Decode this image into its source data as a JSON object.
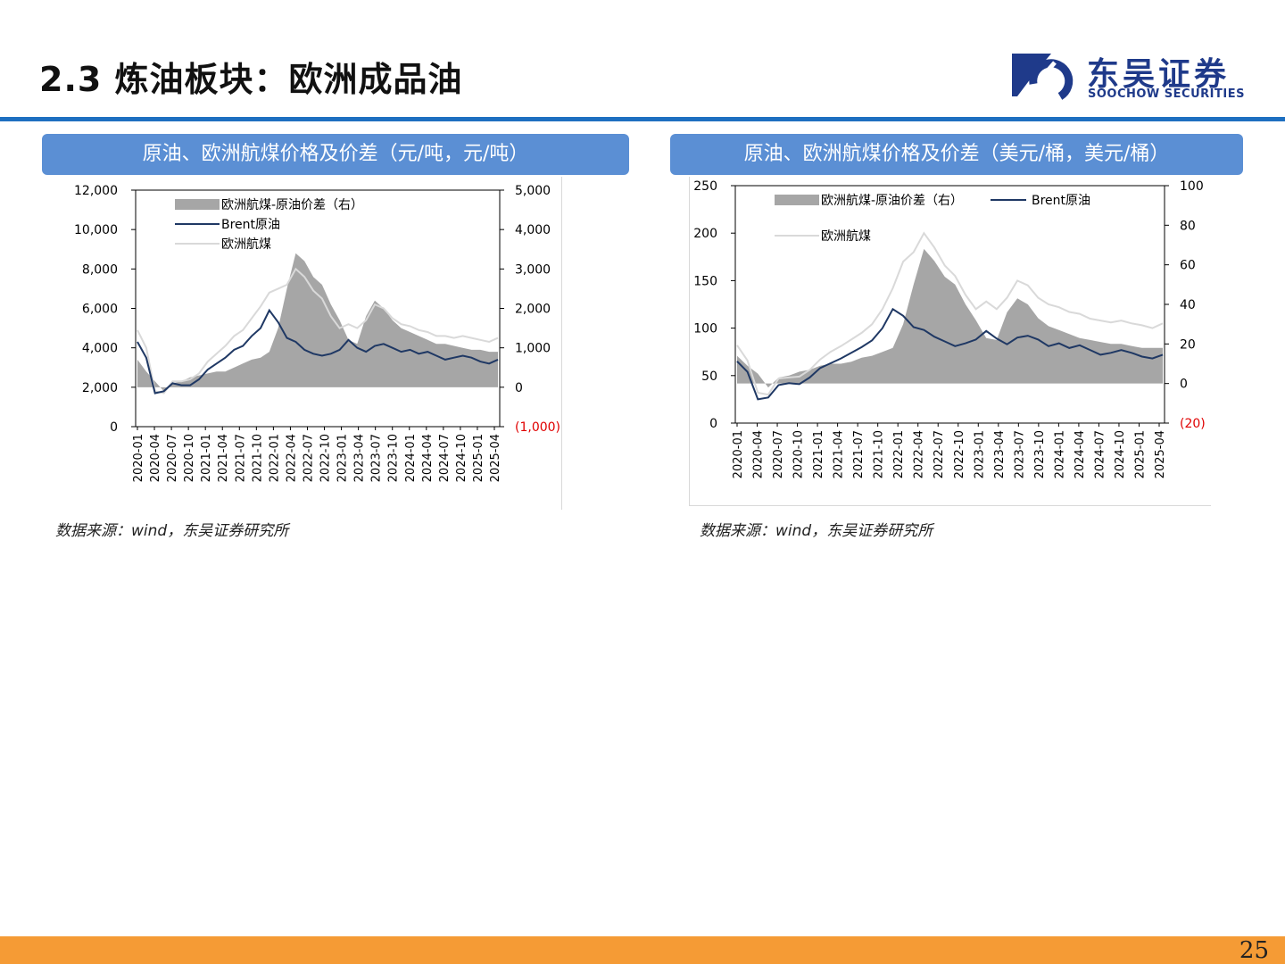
{
  "page": {
    "title": "2.3 炼油板块：欧洲成品油",
    "page_number": "25"
  },
  "logo": {
    "cn": "东吴证券",
    "en": "SOOCHOW SECURITIES"
  },
  "colors": {
    "accent": "#1e6fc0",
    "header": "#5b8fd4",
    "spread": "#a6a6a6",
    "brent": "#1f3864",
    "jet": "#d9d9d9",
    "negative": "#e00000",
    "footer": "#f59b35"
  },
  "panels": [
    {
      "header": "原油、欧洲航煤价格及价差（元/吨，元/吨）",
      "source": "数据来源：wind，东吴证券研究所"
    },
    {
      "header": "原油、欧洲航煤价格及价差（美元/桶，美元/桶）",
      "source": "数据来源：wind，东吴证券研究所"
    }
  ],
  "chart_data": [
    {
      "type": "line",
      "x_ticks": [
        "2020-01",
        "2020-04",
        "2020-07",
        "2020-10",
        "2021-01",
        "2021-04",
        "2021-07",
        "2021-10",
        "2022-01",
        "2022-04",
        "2022-07",
        "2022-10",
        "2023-01",
        "2023-04",
        "2023-07",
        "2023-10",
        "2024-01",
        "2024-04",
        "2024-07",
        "2024-10",
        "2025-01",
        "2025-04"
      ],
      "y_left": {
        "ticks": [
          "0",
          "2,000",
          "4,000",
          "6,000",
          "8,000",
          "10,000",
          "12,000"
        ],
        "ylim": [
          0,
          12000
        ]
      },
      "y_right": {
        "ticks": [
          "(1,000)",
          "0",
          "1,000",
          "2,000",
          "3,000",
          "4,000",
          "5,000"
        ],
        "ylim": [
          -1000,
          5000
        ]
      },
      "legend": [
        "欧洲航煤-原油价差（右）",
        "Brent原油",
        "欧洲航煤"
      ],
      "legend_position": "top-left",
      "series": [
        {
          "name": "欧洲航煤-原油价差（右）",
          "axis": "right",
          "style": "area",
          "values": [
            700,
            400,
            150,
            -100,
            100,
            150,
            250,
            300,
            350,
            400,
            400,
            500,
            600,
            700,
            750,
            900,
            1500,
            2500,
            3400,
            3200,
            2800,
            2600,
            2100,
            1700,
            1200,
            1100,
            1800,
            2200,
            2000,
            1700,
            1500,
            1400,
            1300,
            1200,
            1100,
            1100,
            1050,
            1000,
            950,
            950,
            900,
            900
          ]
        },
        {
          "name": "Brent原油",
          "axis": "left",
          "style": "line",
          "values": [
            4300,
            3500,
            1700,
            1800,
            2200,
            2100,
            2100,
            2400,
            2900,
            3200,
            3500,
            3900,
            4100,
            4600,
            5000,
            5900,
            5300,
            4500,
            4300,
            3900,
            3700,
            3600,
            3700,
            3900,
            4400,
            4000,
            3800,
            4100,
            4200,
            4000,
            3800,
            3900,
            3700,
            3800,
            3600,
            3400,
            3500,
            3600,
            3500,
            3300,
            3200,
            3400
          ]
        },
        {
          "name": "欧洲航煤",
          "axis": "left",
          "style": "line",
          "values": [
            4900,
            4000,
            1800,
            1700,
            2300,
            2300,
            2400,
            2700,
            3300,
            3700,
            4100,
            4600,
            4900,
            5500,
            6100,
            6800,
            7000,
            7200,
            8000,
            7600,
            6900,
            6500,
            5600,
            5000,
            5200,
            5000,
            5400,
            6200,
            6000,
            5500,
            5200,
            5100,
            4900,
            4800,
            4600,
            4600,
            4500,
            4600,
            4500,
            4400,
            4300,
            4500
          ]
        }
      ]
    },
    {
      "type": "line",
      "x_ticks": [
        "2020-01",
        "2020-04",
        "2020-07",
        "2020-10",
        "2021-01",
        "2021-04",
        "2021-07",
        "2021-10",
        "2022-01",
        "2022-04",
        "2022-07",
        "2022-10",
        "2023-01",
        "2023-04",
        "2023-07",
        "2023-10",
        "2024-01",
        "2024-04",
        "2024-07",
        "2024-10",
        "2025-01",
        "2025-04"
      ],
      "y_left": {
        "ticks": [
          "0",
          "50",
          "100",
          "150",
          "200",
          "250"
        ],
        "ylim": [
          0,
          250
        ]
      },
      "y_right": {
        "ticks": [
          "(20)",
          "0",
          "20",
          "40",
          "60",
          "80",
          "100"
        ],
        "ylim": [
          -20,
          100
        ]
      },
      "legend": [
        "欧洲航煤-原油价差（右）",
        "Brent原油",
        "欧洲航煤"
      ],
      "legend_position": "top-left",
      "series": [
        {
          "name": "欧洲航煤-原油价差（右）",
          "axis": "right",
          "style": "area",
          "values": [
            14,
            9,
            5,
            -2,
            3,
            4,
            6,
            7,
            9,
            10,
            10,
            11,
            13,
            14,
            16,
            18,
            30,
            50,
            68,
            62,
            54,
            50,
            40,
            32,
            23,
            22,
            36,
            43,
            40,
            33,
            29,
            27,
            25,
            23,
            22,
            21,
            20,
            20,
            19,
            18,
            18,
            18
          ]
        },
        {
          "name": "Brent原油",
          "axis": "left",
          "style": "line",
          "values": [
            65,
            54,
            25,
            27,
            40,
            42,
            41,
            48,
            58,
            63,
            68,
            74,
            80,
            87,
            100,
            120,
            113,
            101,
            98,
            91,
            86,
            81,
            84,
            88,
            97,
            89,
            83,
            90,
            92,
            88,
            81,
            84,
            79,
            82,
            77,
            72,
            74,
            77,
            74,
            70,
            68,
            72
          ]
        },
        {
          "name": "欧洲航煤",
          "axis": "left",
          "style": "line",
          "values": [
            82,
            66,
            32,
            30,
            47,
            48,
            49,
            56,
            67,
            75,
            81,
            88,
            95,
            104,
            120,
            142,
            170,
            180,
            200,
            185,
            166,
            155,
            135,
            120,
            128,
            120,
            132,
            150,
            145,
            132,
            125,
            122,
            117,
            115,
            110,
            108,
            106,
            108,
            105,
            103,
            100,
            105
          ]
        }
      ]
    }
  ]
}
